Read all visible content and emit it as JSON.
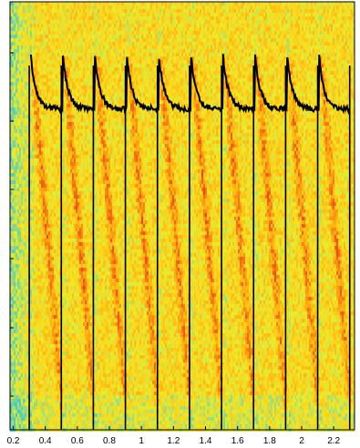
{
  "chart_data": {
    "type": "heatmap",
    "title": "",
    "xlabel": "",
    "ylabel": "",
    "xlim": [
      0.18,
      2.33
    ],
    "xticks": [
      0.2,
      0.4,
      0.6,
      0.8,
      1,
      1.2,
      1.4,
      1.6,
      1.8,
      2,
      2.2
    ],
    "xtick_labels": [
      "0.2",
      "0.4",
      "0.6",
      "0.8",
      "1",
      "1.2",
      "1.4",
      "1.6",
      "1.8",
      "2",
      "2.2"
    ],
    "yticks_count": 6,
    "y_tick_labels": [],
    "grid": false,
    "colormap": [
      "#39c7c7",
      "#8fd98a",
      "#e6ec2f",
      "#ffd21a",
      "#ffab10",
      "#f46a12",
      "#e03a10"
    ],
    "overlay_line_color": "#000000",
    "stimulus_onsets": [
      0.3,
      0.5,
      0.7,
      0.9,
      1.1,
      1.3,
      1.5,
      1.7,
      1.9,
      2.1,
      2.3
    ],
    "trace_peak_times": [
      0.31,
      0.51,
      0.71,
      0.91,
      1.11,
      1.31,
      1.51,
      1.71,
      1.91,
      2.11
    ],
    "trace_units": "relative",
    "trace_peak_level": 1.0,
    "trace_plateau_level": 0.45
  }
}
